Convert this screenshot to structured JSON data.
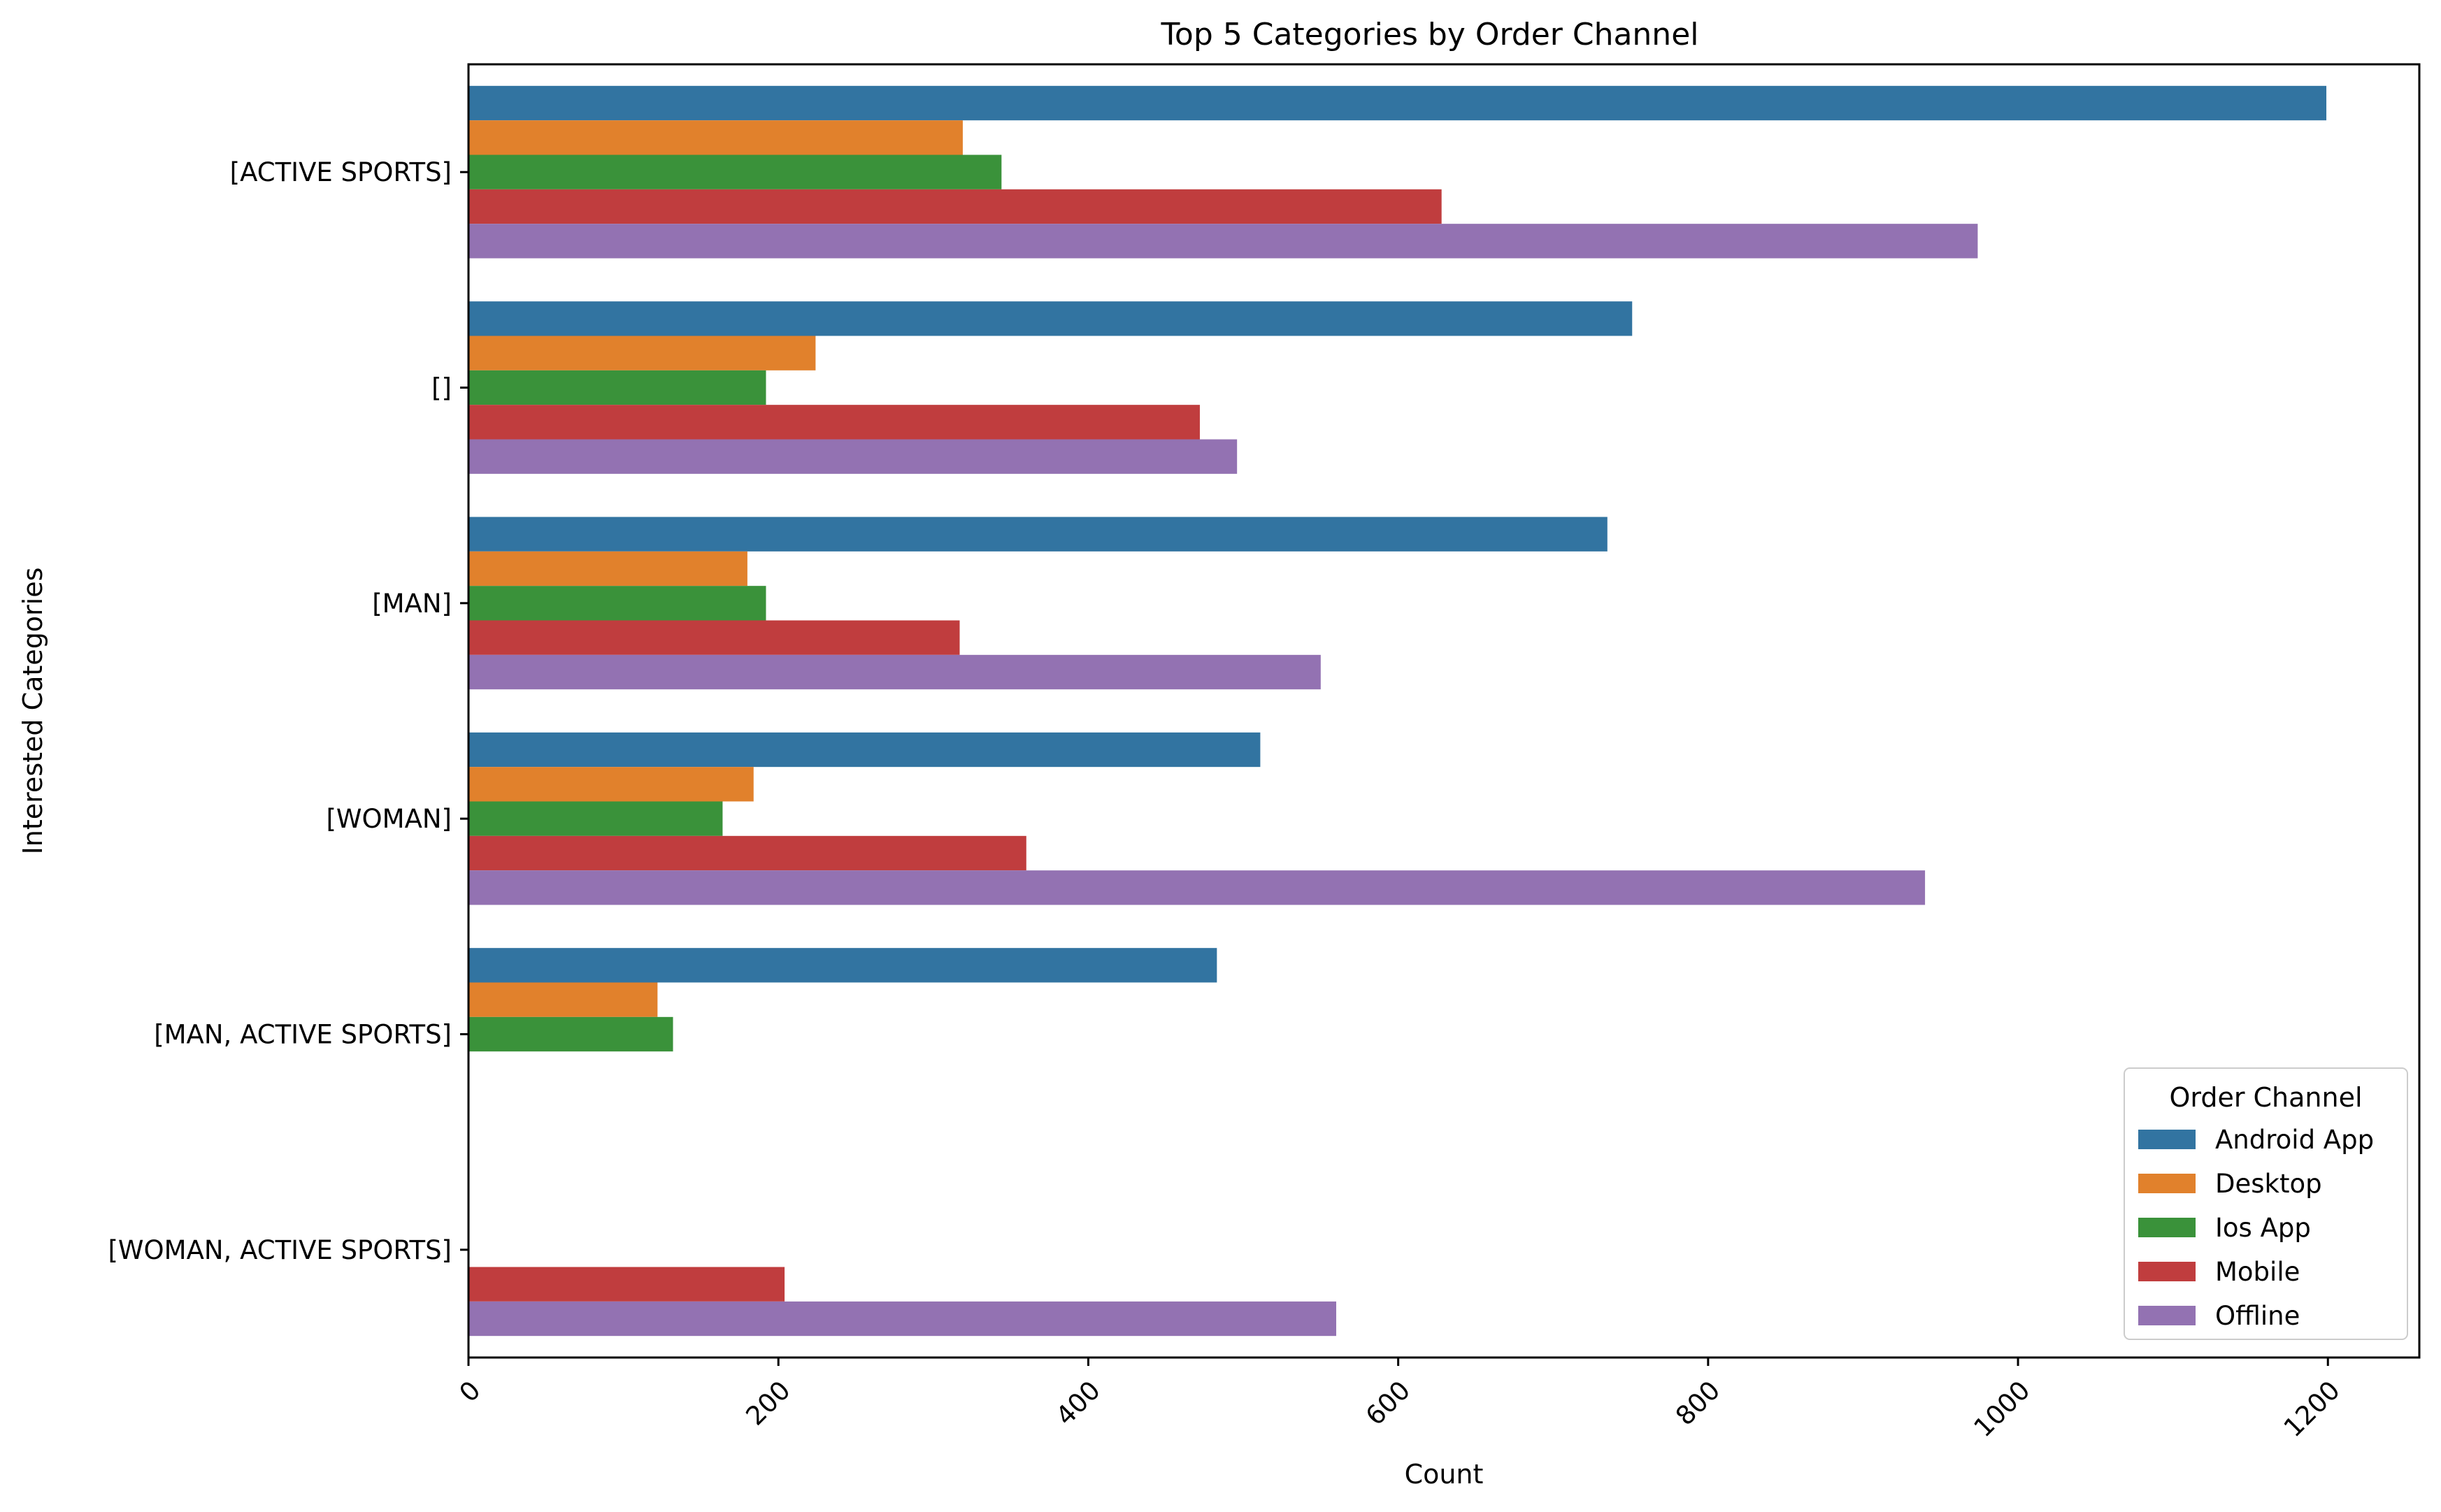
{
  "chart_data": {
    "type": "bar",
    "orientation": "horizontal",
    "title": "Top 5 Categories by Order Channel",
    "xlabel": "Count",
    "ylabel": "Interested Categories",
    "categories": [
      "[ACTIVE SPORTS]",
      "[]",
      "[MAN]",
      "[WOMAN]",
      "[MAN, ACTIVE SPORTS]",
      "[WOMAN, ACTIVE SPORTS]"
    ],
    "series": [
      {
        "name": "Android App",
        "color": "#3274a1",
        "values": [
          1199,
          751,
          735,
          511,
          483,
          0
        ]
      },
      {
        "name": "Desktop",
        "color": "#e1812c",
        "values": [
          319,
          224,
          180,
          184,
          122,
          0
        ]
      },
      {
        "name": "Ios App",
        "color": "#3a923a",
        "values": [
          344,
          192,
          192,
          164,
          132,
          0
        ]
      },
      {
        "name": "Mobile",
        "color": "#c03d3e",
        "values": [
          628,
          472,
          317,
          360,
          0,
          204
        ]
      },
      {
        "name": "Offline",
        "color": "#9372b2",
        "values": [
          974,
          496,
          550,
          940,
          0,
          560
        ]
      }
    ],
    "xlim": [
      0,
      1259
    ],
    "xticks": [
      0,
      200,
      400,
      600,
      800,
      1000,
      1200
    ],
    "xtick_rotation": 45,
    "grid": false,
    "legend": {
      "title": "Order Channel",
      "position": "lower-right"
    }
  }
}
